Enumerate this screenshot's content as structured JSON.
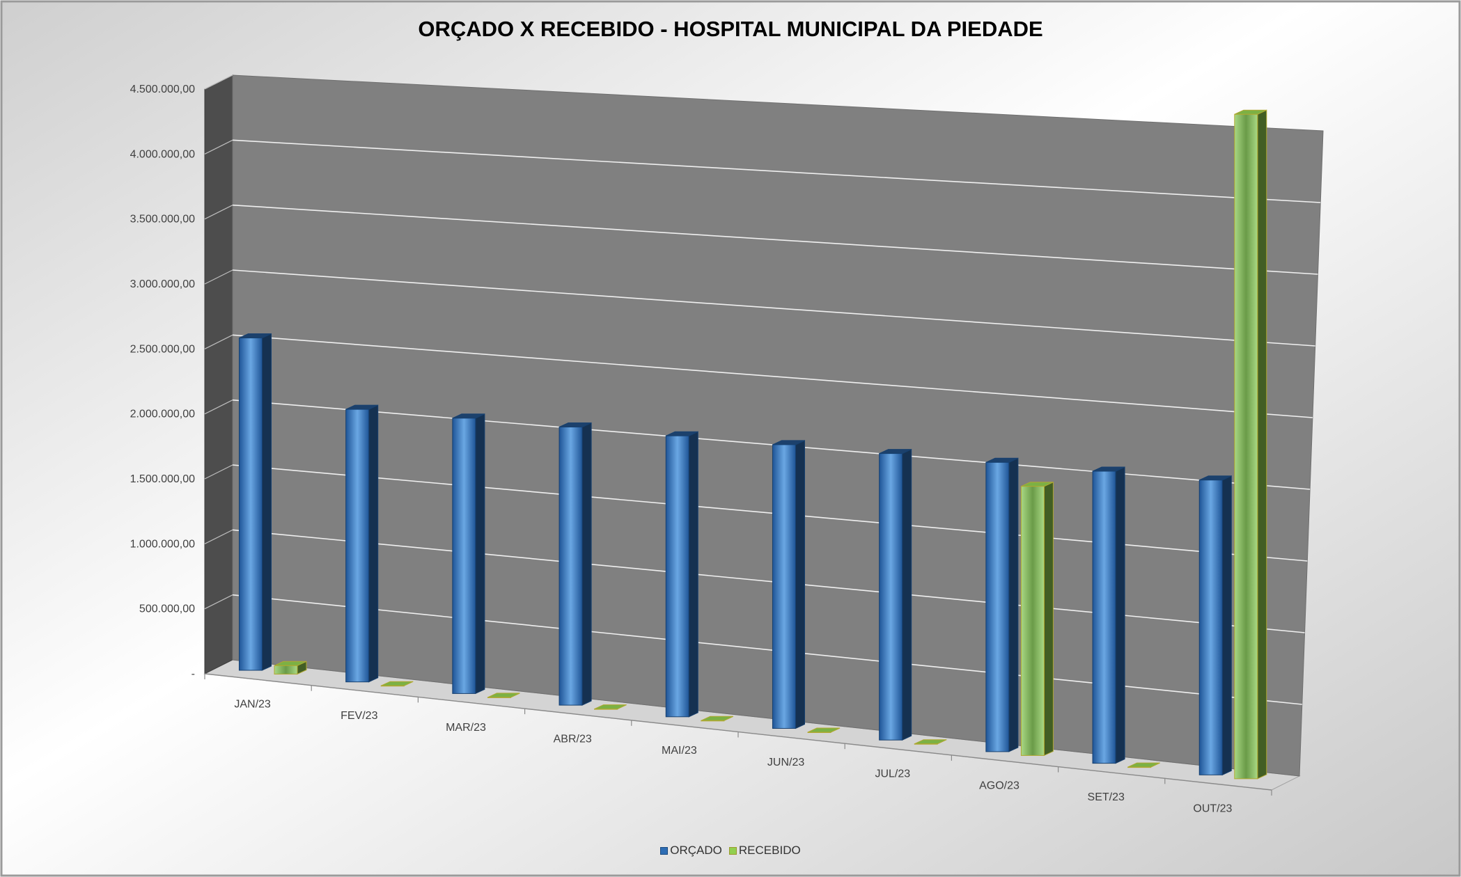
{
  "chart_data": {
    "type": "bar",
    "title": "ORÇADO X RECEBIDO - HOSPITAL MUNICIPAL DA PIEDADE",
    "categories": [
      "JAN/23",
      "FEV/23",
      "MAR/23",
      "ABR/23",
      "MAI/23",
      "JUN/23",
      "JUL/23",
      "AGO/23",
      "SET/23",
      "OUT/23"
    ],
    "series": [
      {
        "name": "ORÇADO",
        "color": "#2E6DB4",
        "values": [
          2550000,
          2070000,
          2070000,
          2070000,
          2070000,
          2070000,
          2070000,
          2070000,
          2070000,
          2070000
        ]
      },
      {
        "name": "RECEBIDO",
        "color": "#92D050",
        "values": [
          65000,
          0,
          0,
          0,
          0,
          0,
          0,
          1920000,
          0,
          4650000
        ]
      }
    ],
    "ylim": [
      0,
      4500000
    ],
    "ticks": [
      "-",
      "500.000,00",
      "1.000.000,00",
      "1.500.000,00",
      "2.000.000,00",
      "2.500.000,00",
      "3.000.000,00",
      "3.500.000,00",
      "4.000.000,00",
      "4.500.000,00"
    ],
    "grid": true,
    "legend_position": "bottom"
  }
}
